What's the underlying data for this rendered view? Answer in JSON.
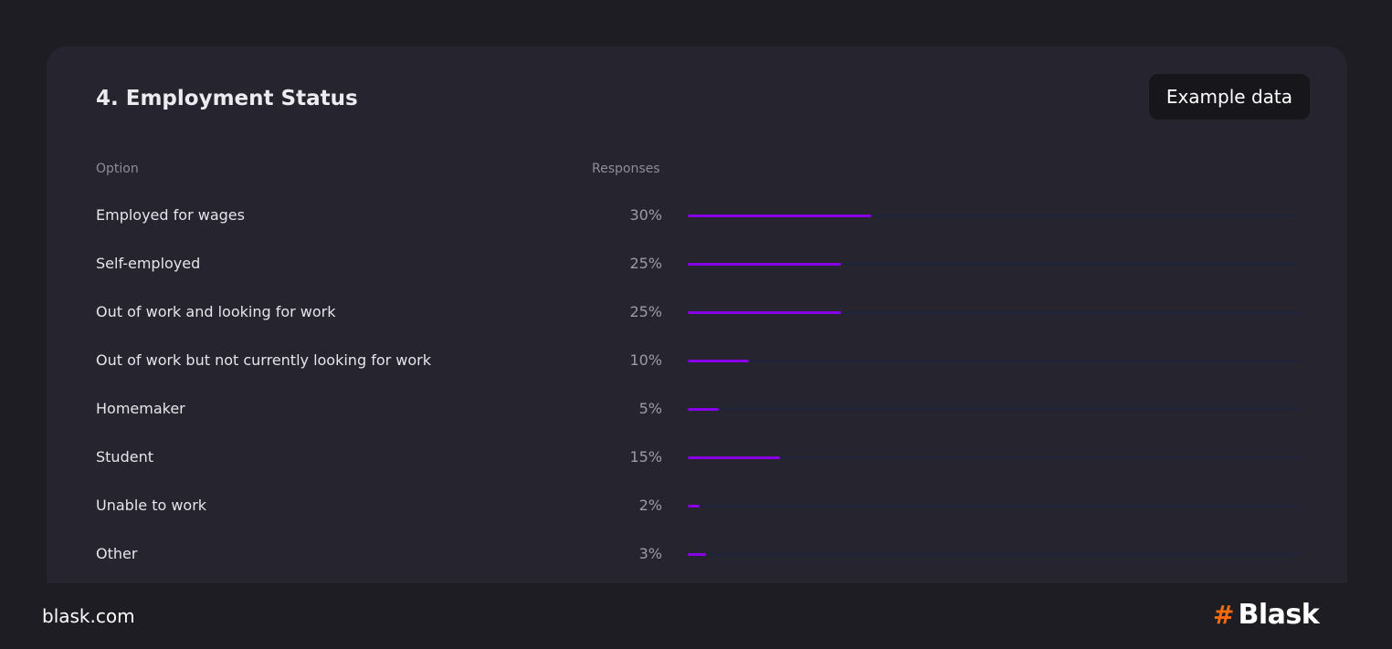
{
  "card": {
    "title": "4. Employment Status",
    "badge": "Example data",
    "columns": {
      "option": "Option",
      "responses": "Responses"
    },
    "rows": [
      {
        "label": "Employed for wages",
        "pct_label": "30%",
        "value": 30
      },
      {
        "label": "Self-employed",
        "pct_label": "25%",
        "value": 25
      },
      {
        "label": "Out of work and looking for work",
        "pct_label": "25%",
        "value": 25
      },
      {
        "label": "Out of work but not currently looking for work",
        "pct_label": "10%",
        "value": 10
      },
      {
        "label": "Homemaker",
        "pct_label": "5%",
        "value": 5
      },
      {
        "label": "Student",
        "pct_label": "15%",
        "value": 15
      },
      {
        "label": "Unable to work",
        "pct_label": "2%",
        "value": 2
      },
      {
        "label": "Other",
        "pct_label": "3%",
        "value": 3
      }
    ],
    "bar_color": "#8a00e6",
    "track_color": "#1f2438"
  },
  "footer": {
    "site": "blask.com",
    "logo_text": "Blask",
    "logo_accent": "#f56a10"
  }
}
